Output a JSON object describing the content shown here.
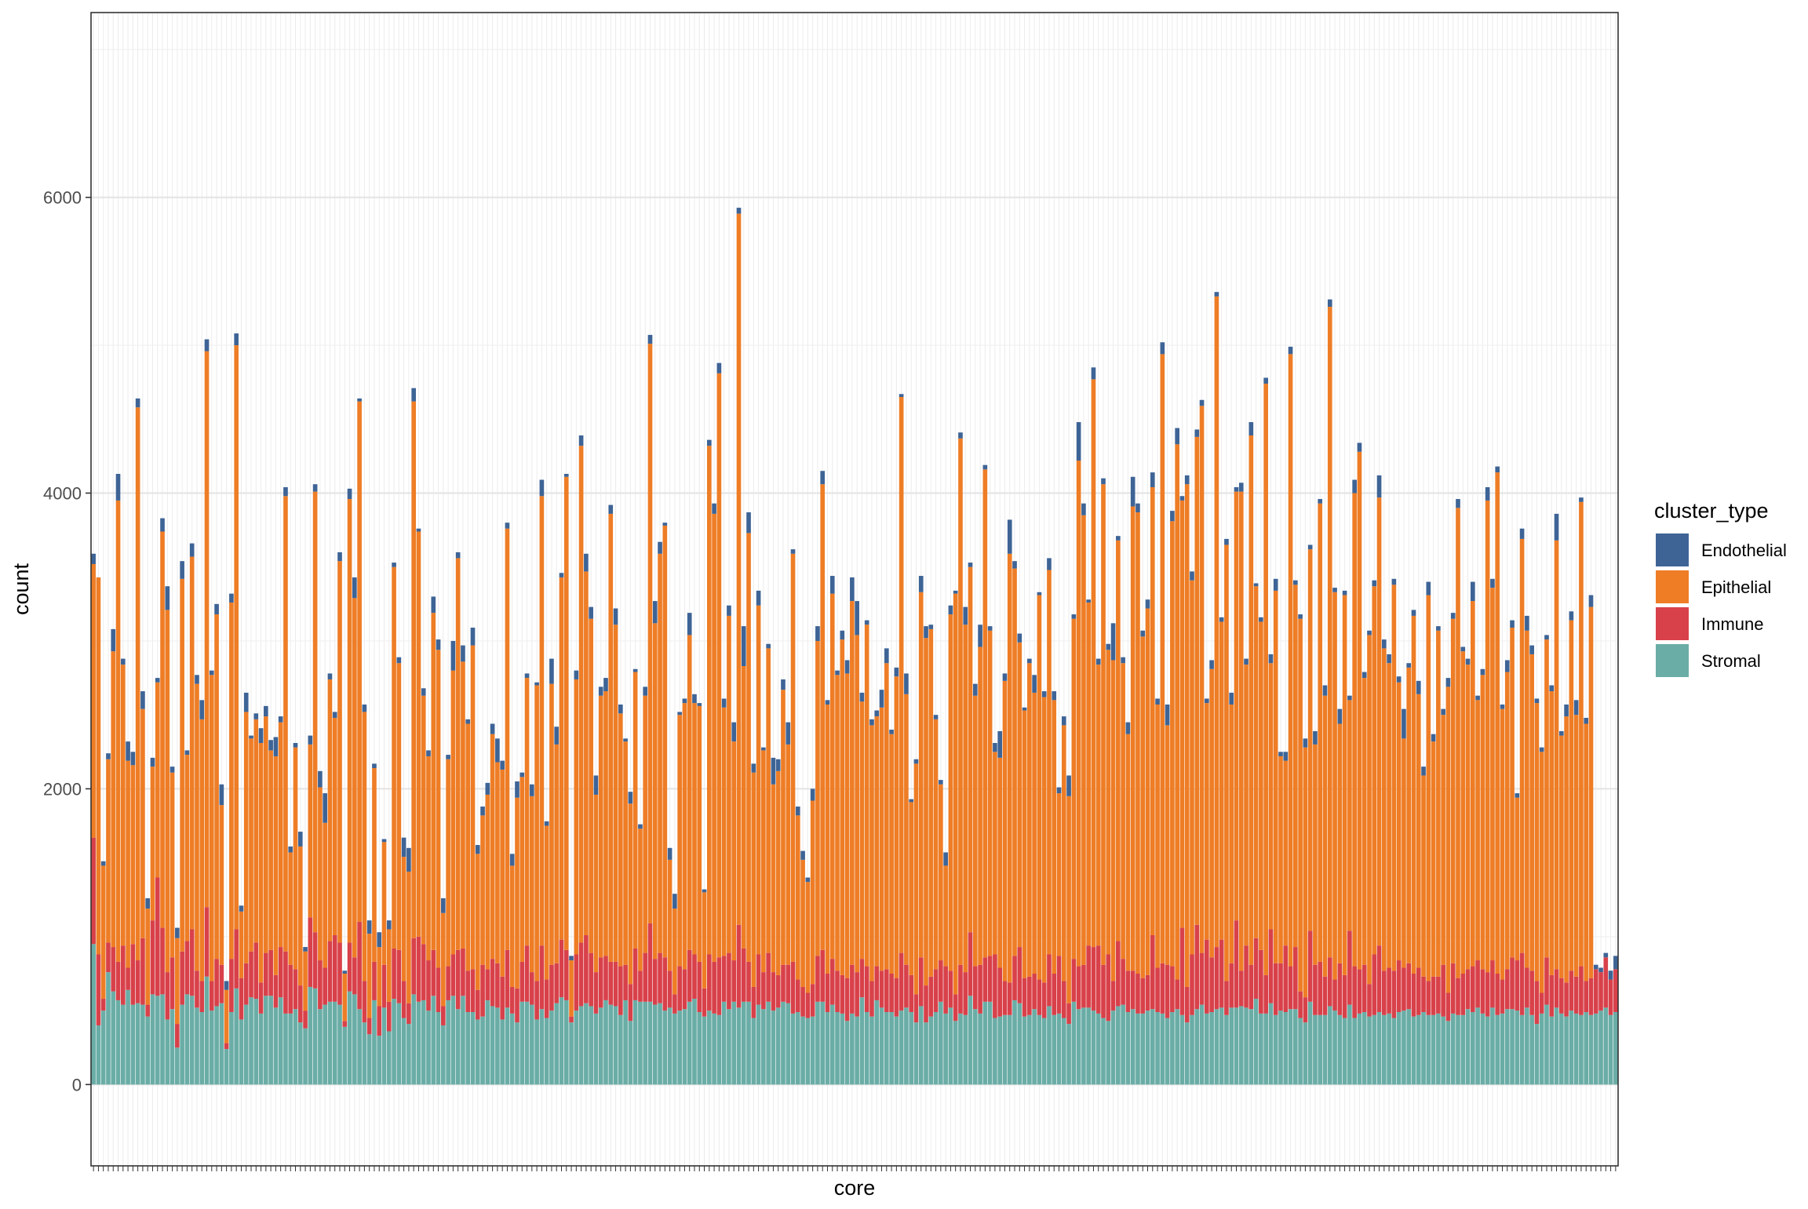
{
  "chart_data": {
    "type": "bar",
    "stacked": true,
    "xlabel": "core",
    "ylabel": "count",
    "ylim": [
      -550,
      7250
    ],
    "y_ticks": [
      0,
      2000,
      4000,
      6000
    ],
    "x_tick_labels_visible": false,
    "grid": true,
    "legend": {
      "title": "cluster_type",
      "position": "right",
      "entries": [
        "Endothelial",
        "Epithelial",
        "Immune",
        "Stromal"
      ]
    },
    "colors": {
      "Endothelial": "#3E6496",
      "Epithelial": "#EE7D26",
      "Immune": "#D8414A",
      "Stromal": "#6AADA6"
    },
    "stack_order_bottom_to_top": [
      "Stromal",
      "Immune",
      "Epithelial",
      "Endothelial"
    ],
    "categories_count": 310,
    "series": [
      {
        "name": "Endothelial",
        "values": [
          70,
          0,
          30,
          40,
          150,
          180,
          40,
          130,
          90,
          60,
          120,
          70,
          60,
          30,
          90,
          160,
          40,
          70,
          120,
          30,
          90,
          60,
          130,
          80,
          30,
          70,
          140,
          60,
          60,
          80,
          40,
          130,
          20,
          40,
          100,
          70,
          70,
          130,
          40,
          60,
          40,
          30,
          100,
          30,
          60,
          50,
          110,
          200,
          40,
          40,
          60,
          20,
          70,
          140,
          20,
          50,
          90,
          30,
          100,
          20,
          60,
          30,
          40,
          130,
          160,
          90,
          20,
          50,
          40,
          110,
          70,
          100,
          30,
          200,
          40,
          110,
          30,
          120,
          60,
          60,
          80,
          70,
          160,
          60,
          40,
          80,
          110,
          30,
          30,
          80,
          20,
          110,
          30,
          170,
          120,
          30,
          20,
          30,
          60,
          70,
          120,
          80,
          130,
          60,
          90,
          60,
          110,
          60,
          20,
          80,
          20,
          30,
          60,
          60,
          150,
          80,
          20,
          80,
          100,
          20,
          30,
          150,
          60,
          20,
          20,
          40,
          70,
          70,
          60,
          70,
          130,
          40,
          270,
          140,
          60,
          100,
          20,
          30,
          180,
          80,
          70,
          150,
          30,
          60,
          60,
          30,
          80,
          100,
          90,
          30,
          120,
          30,
          60,
          90,
          160,
          230,
          60,
          30,
          40,
          40,
          120,
          100,
          30,
          60,
          20,
          140,
          20,
          30,
          110,
          80,
          30,
          30,
          30,
          90,
          60,
          20,
          40,
          120,
          30,
          80,
          150,
          30,
          30,
          60,
          180,
          50,
          230,
          50,
          60,
          20,
          30,
          120,
          20,
          40,
          80,
          60,
          40,
          60,
          140,
          30,
          260,
          80,
          20,
          80,
          40,
          40,
          40,
          250,
          30,
          40,
          80,
          200,
          60,
          40,
          60,
          100,
          40,
          80,
          140,
          70,
          110,
          30,
          60,
          60,
          50,
          40,
          30,
          60,
          30,
          30,
          40,
          80,
          30,
          60,
          40,
          90,
          20,
          30,
          40,
          60,
          80,
          30,
          60,
          50,
          30,
          30,
          60,
          30,
          90,
          30,
          70,
          50,
          30,
          100,
          30,
          30,
          90,
          60,
          40,
          30,
          40,
          150,
          60,
          60,
          40,
          40,
          200,
          30,
          40,
          90,
          60,
          90,
          50,
          30,
          40,
          60,
          40,
          60,
          30,
          40,
          130,
          30,
          40,
          90,
          60,
          40,
          30,
          80,
          50,
          30,
          70,
          100,
          60,
          30,
          30,
          30,
          40,
          180,
          30,
          80,
          60,
          100,
          30,
          40,
          80,
          30,
          30,
          30,
          60,
          90,
          70,
          70,
          90,
          60,
          90,
          40,
          30
        ]
      },
      {
        "name": "Epithelial",
        "values": [
          1850,
          2550,
          900,
          1240,
          2000,
          3120,
          1900,
          1400,
          1210,
          3740,
          1550,
          650,
          1040,
          1320,
          2680,
          2450,
          1250,
          580,
          2520,
          1260,
          2520,
          1940,
          1770,
          3760,
          2070,
          2330,
          1080,
          360,
          2410,
          3950,
          450,
          1700,
          1440,
          1510,
          1620,
          1600,
          1350,
          1480,
          1520,
          3080,
          760,
          1500,
          940,
          400,
          1170,
          2980,
          1170,
          980,
          1770,
          1470,
          2580,
          320,
          3000,
          2430,
          3520,
          1820,
          570,
          1310,
          400,
          830,
          490,
          2580,
          1940,
          840,
          890,
          3630,
          2740,
          1680,
          1380,
          2280,
          2150,
          630,
          1400,
          1920,
          2650,
          1940,
          1670,
          2190,
          920,
          1010,
          1180,
          1520,
          1360,
          1400,
          2850,
          820,
          1290,
          1250,
          1810,
          1190,
          2000,
          3040,
          1040,
          1900,
          1480,
          2450,
          3200,
          380,
          1860,
          3360,
          2460,
          2260,
          1200,
          1770,
          1790,
          3030,
          2280,
          1710,
          1510,
          1220,
          1870,
          960,
          1740,
          3920,
          2270,
          2700,
          2920,
          750,
          580,
          1700,
          1800,
          2130,
          1700,
          1730,
          650,
          3440,
          3030,
          3950,
          1680,
          2280,
          1480,
          4810,
          1910,
          2900,
          1450,
          2360,
          1500,
          2060,
          1270,
          1380,
          1860,
          1490,
          2760,
          1110,
          860,
          750,
          1240,
          2130,
          3150,
          1820,
          2470,
          2000,
          2270,
          2060,
          2460,
          2280,
          1740,
          2310,
          1730,
          1690,
          1780,
          2070,
          1620,
          2040,
          3760,
          1830,
          1170,
          1560,
          2470,
          2350,
          2350,
          1690,
          1190,
          680,
          2410,
          2710,
          3560,
          2350,
          2470,
          1830,
          2150,
          3300,
          2200,
          1370,
          1420,
          2030,
          2900,
          2620,
          2060,
          1810,
          2120,
          1900,
          2600,
          1930,
          2600,
          1850,
          1100,
          1730,
          1400,
          2300,
          3420,
          3040,
          2320,
          3840,
          1900,
          3250,
          2060,
          2170,
          2710,
          2000,
          1600,
          3140,
          3120,
          2310,
          2480,
          3030,
          1780,
          4120,
          1620,
          3010,
          3620,
          2890,
          3400,
          2530,
          3300,
          3700,
          1600,
          1950,
          4400,
          2150,
          2950,
          1750,
          2900,
          3240,
          1900,
          3580,
          2380,
          2220,
          4000,
          1800,
          2520,
          1400,
          1250,
          4140,
          2450,
          2520,
          1690,
          2580,
          1490,
          3100,
          1900,
          4400,
          2620,
          1620,
          2570,
          1560,
          3200,
          3500,
          1940,
          2360,
          2490,
          3030,
          2180,
          2060,
          2610,
          1880,
          1550,
          2000,
          2420,
          1850,
          1360,
          2610,
          1590,
          2340,
          1690,
          2070,
          2330,
          3180,
          2180,
          2060,
          2470,
          1760,
          1990,
          3190,
          2520,
          3390,
          1830,
          2010,
          2230,
          1100,
          2800,
          2280,
          2140,
          1880,
          1630,
          2150,
          1920,
          2900,
          1640,
          1800,
          2370,
          1770,
          3140,
          1740,
          2510
        ]
      },
      {
        "name": "Immune",
        "values": [
          720,
          480,
          80,
          200,
          300,
          260,
          400,
          150,
          410,
          290,
          450,
          80,
          500,
          800,
          450,
          320,
          350,
          160,
          360,
          360,
          450,
          250,
          210,
          470,
          200,
          320,
          260,
          40,
          360,
          400,
          280,
          280,
          310,
          380,
          210,
          290,
          310,
          220,
          340,
          420,
          330,
          270,
          250,
          120,
          470,
          380,
          330,
          250,
          410,
          450,
          420,
          40,
          330,
          250,
          590,
          280,
          110,
          260,
          200,
          290,
          200,
          340,
          360,
          250,
          140,
          380,
          440,
          380,
          340,
          310,
          300,
          130,
          230,
          280,
          400,
          320,
          280,
          290,
          200,
          350,
          210,
          320,
          300,
          290,
          390,
          180,
          230,
          270,
          380,
          220,
          260,
          430,
          260,
          310,
          270,
          390,
          340,
          40,
          380,
          430,
          460,
          360,
          280,
          340,
          300,
          290,
          300,
          330,
          240,
          250,
          350,
          210,
          330,
          530,
          310,
          340,
          360,
          250,
          130,
          300,
          270,
          350,
          300,
          340,
          190,
          380,
          350,
          390,
          310,
          380,
          280,
          560,
          360,
          270,
          210,
          340,
          250,
          330,
          260,
          220,
          250,
          260,
          350,
          220,
          200,
          170,
          220,
          310,
          350,
          260,
          310,
          280,
          260,
          290,
          330,
          300,
          260,
          310,
          240,
          230,
          250,
          290,
          260,
          260,
          390,
          290,
          250,
          190,
          330,
          250,
          270,
          290,
          280,
          320,
          250,
          180,
          330,
          290,
          430,
          290,
          330,
          300,
          310,
          430,
          330,
          230,
          220,
          300,
          380,
          260,
          260,
          240,
          240,
          240,
          350,
          280,
          390,
          250,
          140,
          290,
          290,
          290,
          420,
          430,
          460,
          360,
          450,
          200,
          440,
          310,
          280,
          260,
          270,
          240,
          240,
          500,
          300,
          340,
          360,
          310,
          200,
          590,
          240,
          410,
          570,
          350,
          500,
          370,
          420,
          460,
          230,
          300,
          590,
          240,
          420,
          300,
          410,
          430,
          260,
          500,
          350,
          320,
          450,
          290,
          420,
          180,
          170,
          480,
          340,
          360,
          260,
          330,
          210,
          350,
          290,
          500,
          350,
          300,
          320,
          220,
          410,
          450,
          300,
          310,
          320,
          350,
          290,
          310,
          290,
          320,
          240,
          230,
          260,
          250,
          350,
          190,
          340,
          250,
          280,
          270,
          310,
          320,
          300,
          300,
          320,
          280,
          230,
          270,
          350,
          340,
          420,
          270,
          300,
          290,
          140,
          320,
          280,
          260,
          240,
          230,
          270,
          250,
          330,
          210,
          250,
          300,
          260,
          340,
          240,
          290
        ]
      },
      {
        "name": "Stromal",
        "values": [
          950,
          400,
          500,
          760,
          630,
          570,
          540,
          640,
          540,
          550,
          540,
          460,
          610,
          600,
          610,
          440,
          510,
          250,
          540,
          610,
          600,
          520,
          490,
          730,
          500,
          530,
          550,
          240,
          490,
          650,
          440,
          540,
          590,
          580,
          480,
          600,
          600,
          520,
          590,
          480,
          480,
          510,
          420,
          380,
          660,
          650,
          510,
          540,
          560,
          560,
          540,
          390,
          630,
          610,
          510,
          420,
          340,
          570,
          330,
          520,
          360,
          580,
          550,
          450,
          410,
          610,
          560,
          570,
          500,
          600,
          490,
          400,
          570,
          600,
          510,
          600,
          490,
          490,
          440,
          460,
          570,
          530,
          520,
          440,
          520,
          480,
          420,
          560,
          560,
          540,
          440,
          510,
          450,
          500,
          550,
          590,
          570,
          420,
          500,
          530,
          550,
          530,
          480,
          520,
          570,
          540,
          530,
          470,
          570,
          430,
          570,
          560,
          560,
          560,
          540,
          550,
          500,
          520,
          480,
          500,
          510,
          560,
          580,
          490,
          460,
          500,
          480,
          470,
          560,
          510,
          560,
          520,
          560,
          560,
          450,
          540,
          510,
          560,
          500,
          520,
          560,
          550,
          480,
          490,
          460,
          450,
          460,
          560,
          560,
          490,
          540,
          490,
          480,
          430,
          480,
          460,
          590,
          490,
          460,
          570,
          520,
          490,
          490,
          460,
          500,
          520,
          490,
          420,
          530,
          420,
          460,
          490,
          560,
          480,
          520,
          430,
          480,
          470,
          600,
          510,
          480,
          560,
          560,
          450,
          460,
          470,
          470,
          570,
          550,
          460,
          470,
          510,
          470,
          450,
          530,
          470,
          480,
          450,
          410,
          560,
          510,
          520,
          520,
          500,
          480,
          450,
          430,
          500,
          530,
          540,
          490,
          510,
          480,
          480,
          500,
          510,
          490,
          480,
          450,
          490,
          510,
          470,
          420,
          470,
          510,
          540,
          480,
          490,
          510,
          520,
          470,
          520,
          520,
          530,
          520,
          510,
          580,
          480,
          480,
          550,
          470,
          500,
          490,
          510,
          510,
          450,
          420,
          560,
          470,
          470,
          470,
          530,
          500,
          470,
          450,
          540,
          450,
          480,
          490,
          460,
          470,
          490,
          470,
          480,
          450,
          490,
          500,
          510,
          460,
          470,
          490,
          470,
          470,
          480,
          460,
          430,
          480,
          470,
          470,
          510,
          490,
          520,
          480,
          460,
          520,
          470,
          480,
          510,
          510,
          500,
          470,
          520,
          470,
          410,
          480,
          540,
          460,
          520,
          480,
          460,
          500,
          480,
          470,
          490,
          470,
          480,
          500,
          520,
          470,
          490
        ]
      }
    ]
  }
}
